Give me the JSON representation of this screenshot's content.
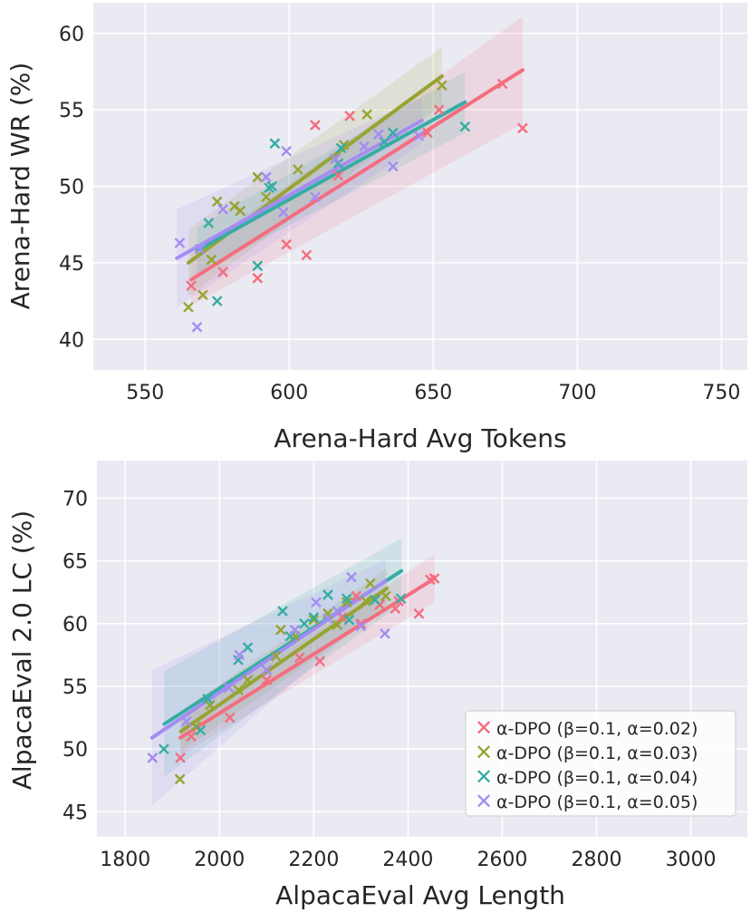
{
  "colors": {
    "alpha_002": "#f46d7f",
    "alpha_003": "#97a431",
    "alpha_004": "#36ada4",
    "alpha_005": "#a48cf4"
  },
  "legend": {
    "placement": "lower-right (bottom panel)",
    "entries": [
      {
        "label": "α-DPO (β=0.1, α=0.02)",
        "color_key": "alpha_002"
      },
      {
        "label": "α-DPO (β=0.1, α=0.03)",
        "color_key": "alpha_003"
      },
      {
        "label": "α-DPO (β=0.1, α=0.04)",
        "color_key": "alpha_004"
      },
      {
        "label": "α-DPO (β=0.1, α=0.05)",
        "color_key": "alpha_005"
      }
    ]
  },
  "chart_data": [
    {
      "type": "scatter",
      "regression": true,
      "xlabel": "Arena-Hard Avg Tokens",
      "ylabel": "Arena-Hard WR (%)",
      "xlim": [
        532,
        759
      ],
      "ylim": [
        38,
        62
      ],
      "xticks": [
        550,
        600,
        650,
        700,
        750
      ],
      "yticks": [
        40,
        45,
        50,
        55,
        60
      ],
      "xtick_labels": [
        "550",
        "600",
        "650",
        "700",
        "750"
      ],
      "ytick_labels": [
        "40",
        "45",
        "50",
        "55",
        "60"
      ],
      "grid": true,
      "series": [
        {
          "name": "α-DPO (β=0.1, α=0.02)",
          "color_key": "alpha_002",
          "points": [
            [
              566,
              43.5
            ],
            [
              577,
              44.4
            ],
            [
              589,
              44.0
            ],
            [
              599,
              46.2
            ],
            [
              606,
              45.5
            ],
            [
              609,
              54.0
            ],
            [
              621,
              54.6
            ],
            [
              648,
              53.5
            ],
            [
              652,
              55.0
            ],
            [
              674,
              56.7
            ],
            [
              681,
              53.8
            ],
            [
              617,
              50.7
            ]
          ],
          "fit": {
            "x": [
              566,
              681
            ],
            "y": [
              43.9,
              57.6
            ],
            "band_halfwidth": [
              1.7,
              3.5
            ]
          }
        },
        {
          "name": "α-DPO (β=0.1, α=0.03)",
          "color_key": "alpha_003",
          "points": [
            [
              565,
              42.1
            ],
            [
              570,
              42.9
            ],
            [
              573,
              45.2
            ],
            [
              575,
              49.0
            ],
            [
              581,
              48.7
            ],
            [
              589,
              50.6
            ],
            [
              592,
              49.3
            ],
            [
              603,
              51.1
            ],
            [
              619,
              52.7
            ],
            [
              627,
              54.7
            ],
            [
              653,
              56.6
            ],
            [
              583,
              48.4
            ]
          ],
          "fit": {
            "x": [
              565,
              653
            ],
            "y": [
              45.0,
              57.2
            ],
            "band_halfwidth": [
              2.2,
              1.9
            ]
          }
        },
        {
          "name": "α-DPO (β=0.1, α=0.04)",
          "color_key": "alpha_004",
          "points": [
            [
              572,
              47.6
            ],
            [
              575,
              42.5
            ],
            [
              589,
              44.8
            ],
            [
              594,
              50.0
            ],
            [
              595,
              52.8
            ],
            [
              617,
              51.5
            ],
            [
              618,
              52.5
            ],
            [
              633,
              52.9
            ],
            [
              636,
              53.5
            ],
            [
              661,
              53.9
            ],
            [
              593,
              49.9
            ]
          ],
          "fit": {
            "x": [
              568,
              661
            ],
            "y": [
              45.8,
              55.5
            ],
            "band_halfwidth": [
              1.5,
              2.0
            ]
          }
        },
        {
          "name": "α-DPO (β=0.1, α=0.05)",
          "color_key": "alpha_005",
          "points": [
            [
              562,
              46.3
            ],
            [
              568,
              40.8
            ],
            [
              569,
              45.9
            ],
            [
              577,
              48.5
            ],
            [
              592,
              50.6
            ],
            [
              598,
              48.3
            ],
            [
              599,
              52.3
            ],
            [
              609,
              49.3
            ],
            [
              616,
              51.8
            ],
            [
              626,
              52.6
            ],
            [
              631,
              53.4
            ],
            [
              636,
              51.3
            ],
            [
              645,
              53.3
            ]
          ],
          "fit": {
            "x": [
              561,
              646
            ],
            "y": [
              45.3,
              54.3
            ],
            "band_halfwidth": [
              3.2,
              1.5
            ]
          }
        }
      ]
    },
    {
      "type": "scatter",
      "regression": true,
      "xlabel": "AlpacaEval Avg Length",
      "ylabel": "AlpacaEval 2.0 LC (%)",
      "xlim": [
        1740,
        3120
      ],
      "ylim": [
        43,
        73
      ],
      "xticks": [
        1800,
        2000,
        2200,
        2400,
        2600,
        2800,
        3000
      ],
      "yticks": [
        45,
        50,
        55,
        60,
        65,
        70
      ],
      "xtick_labels": [
        "1800",
        "2000",
        "2200",
        "2400",
        "2600",
        "2800",
        "3000"
      ],
      "ytick_labels": [
        "45",
        "50",
        "55",
        "60",
        "65",
        "70"
      ],
      "grid": true,
      "series": [
        {
          "name": "α-DPO (β=0.1, α=0.02)",
          "color_key": "alpha_002",
          "points": [
            [
              1917,
              49.3
            ],
            [
              1940,
              51.0
            ],
            [
              2022,
              52.5
            ],
            [
              2100,
              55.5
            ],
            [
              2170,
              57.3
            ],
            [
              2213,
              57.0
            ],
            [
              2260,
              60.5
            ],
            [
              2300,
              60.0
            ],
            [
              2340,
              61.5
            ],
            [
              2373,
              61.2
            ],
            [
              2380,
              61.8
            ],
            [
              2423,
              60.8
            ],
            [
              2447,
              63.5
            ],
            [
              2456,
              63.6
            ],
            [
              2290,
              62.2
            ]
          ],
          "fit": {
            "x": [
              1917,
              2456
            ],
            "y": [
              50.9,
              63.6
            ],
            "band_halfwidth": [
              1.4,
              1.9
            ]
          }
        },
        {
          "name": "α-DPO (β=0.1, α=0.03)",
          "color_key": "alpha_003",
          "points": [
            [
              1916,
              47.6
            ],
            [
              1950,
              51.8
            ],
            [
              1980,
              53.5
            ],
            [
              2040,
              54.7
            ],
            [
              2060,
              55.5
            ],
            [
              2120,
              57.4
            ],
            [
              2130,
              59.5
            ],
            [
              2160,
              59.0
            ],
            [
              2200,
              60.3
            ],
            [
              2230,
              60.8
            ],
            [
              2270,
              61.7
            ],
            [
              2310,
              61.8
            ],
            [
              2320,
              63.2
            ],
            [
              2353,
              62.2
            ],
            [
              2250,
              59.9
            ]
          ],
          "fit": {
            "x": [
              1918,
              2355
            ],
            "y": [
              51.4,
              62.8
            ],
            "band_halfwidth": [
              1.6,
              1.6
            ]
          }
        },
        {
          "name": "α-DPO (β=0.1, α=0.04)",
          "color_key": "alpha_004",
          "points": [
            [
              1882,
              50.0
            ],
            [
              1960,
              51.5
            ],
            [
              1975,
              54.0
            ],
            [
              2040,
              57.1
            ],
            [
              2060,
              58.1
            ],
            [
              2134,
              61.0
            ],
            [
              2150,
              59.0
            ],
            [
              2180,
              60.0
            ],
            [
              2230,
              62.3
            ],
            [
              2270,
              62.0
            ],
            [
              2275,
              60.3
            ],
            [
              2330,
              61.9
            ],
            [
              2385,
              62.0
            ],
            [
              2200,
              60.5
            ]
          ],
          "fit": {
            "x": [
              1883,
              2386
            ],
            "y": [
              52.0,
              64.2
            ],
            "band_halfwidth": [
              4.2,
              2.6
            ]
          }
        },
        {
          "name": "α-DPO (β=0.1, α=0.05)",
          "color_key": "alpha_005",
          "points": [
            [
              1858,
              49.3
            ],
            [
              1930,
              52.2
            ],
            [
              2020,
              54.9
            ],
            [
              2042,
              57.5
            ],
            [
              2160,
              59.5
            ],
            [
              2205,
              61.7
            ],
            [
              2250,
              61.0
            ],
            [
              2280,
              63.7
            ],
            [
              2300,
              59.8
            ],
            [
              2351,
              59.2
            ],
            [
              2230,
              60.4
            ],
            [
              2100,
              56.3
            ]
          ],
          "fit": {
            "x": [
              1857,
              2352
            ],
            "y": [
              50.9,
              63.4
            ],
            "band_halfwidth": [
              5.4,
              1.7
            ]
          }
        }
      ]
    }
  ]
}
